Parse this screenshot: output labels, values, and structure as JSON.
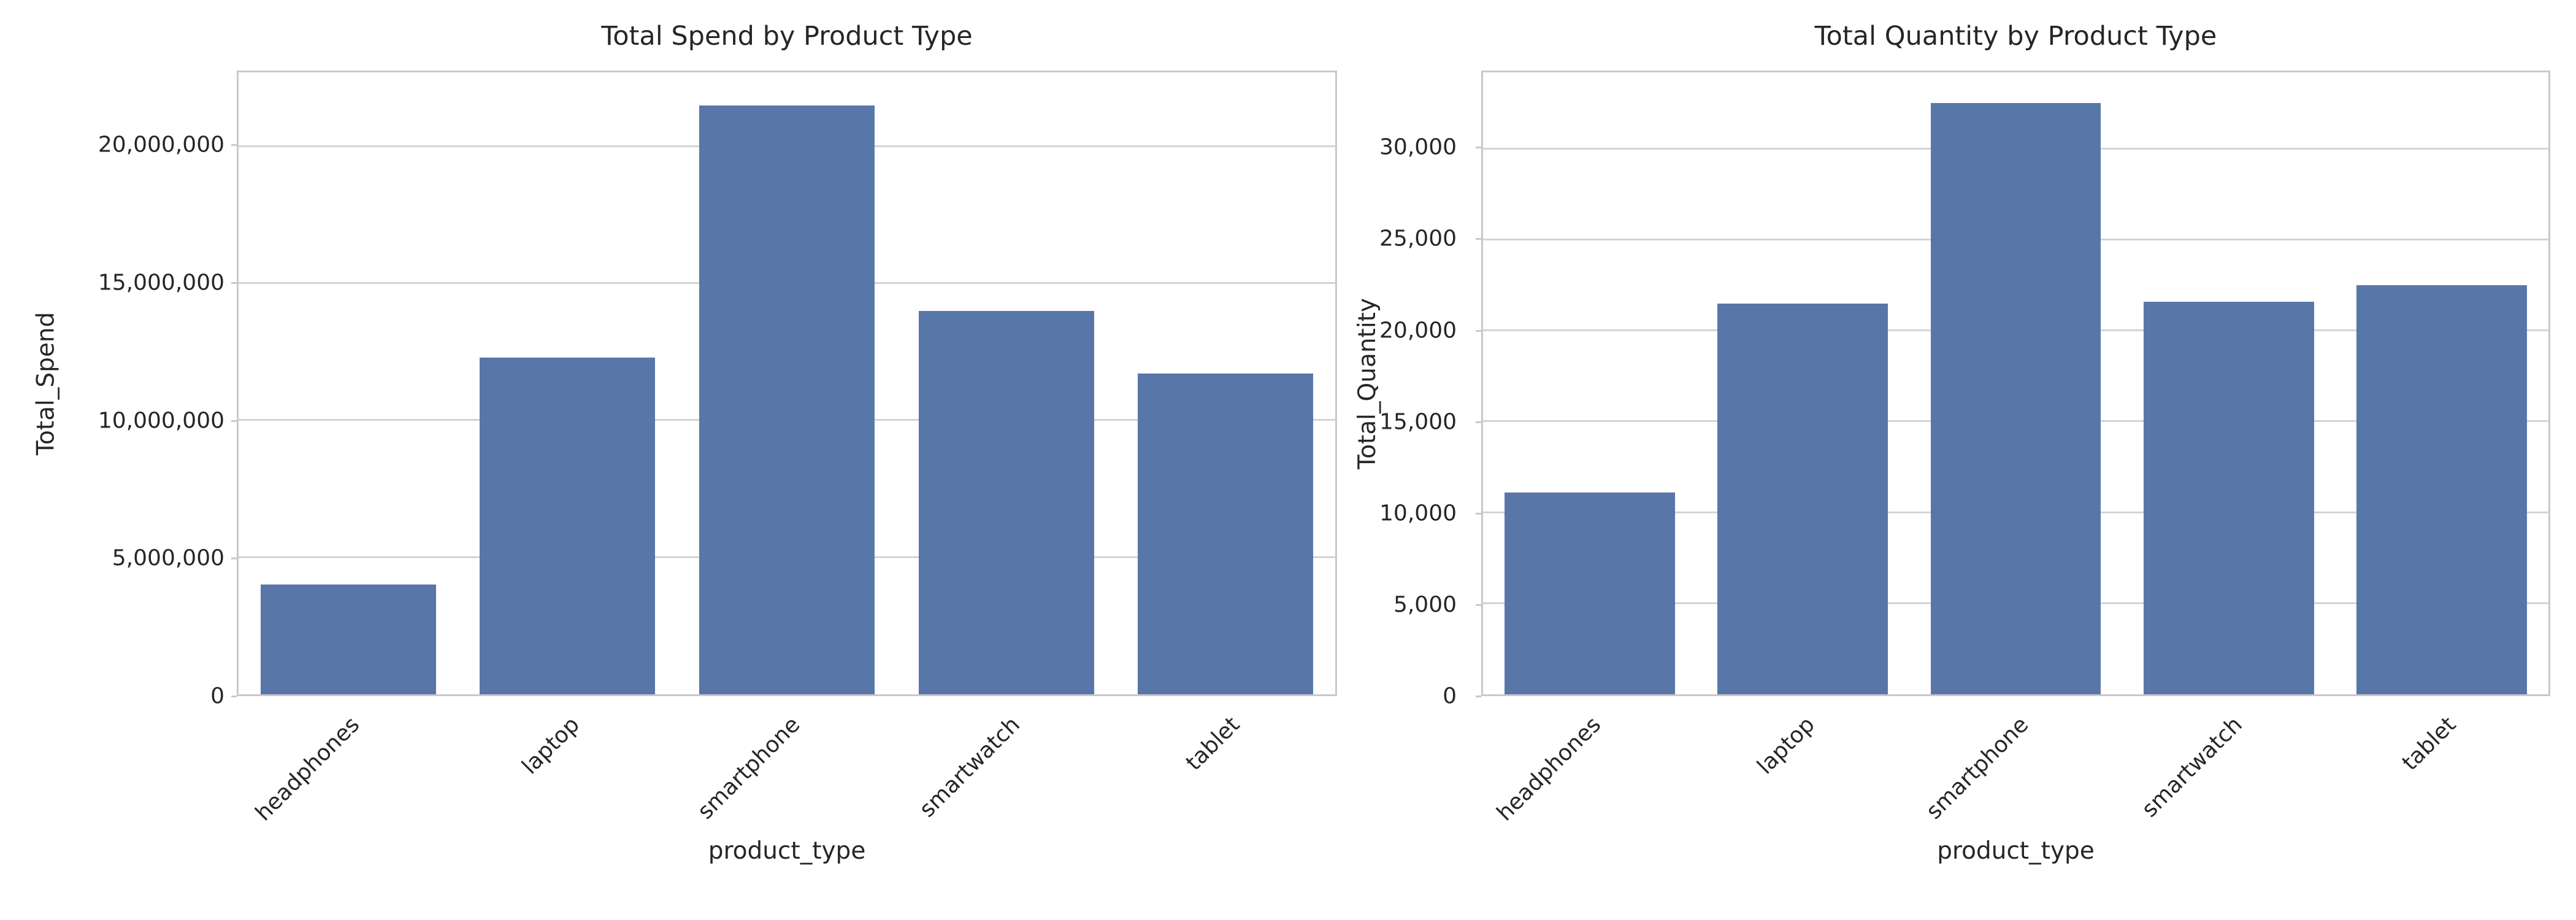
{
  "page": {
    "background_color": "#ffffff",
    "text_color": "#262626",
    "grid_color": "#d4d4d4",
    "spine_color": "#c9c9c9"
  },
  "chart_data": [
    {
      "type": "bar",
      "title": "Total Spend by Product Type",
      "xlabel": "product_type",
      "ylabel": "Total_Spend",
      "categories": [
        "headphones",
        "laptop",
        "smartphone",
        "smartwatch",
        "tablet"
      ],
      "values": [
        4000000,
        12300000,
        21500000,
        14000000,
        11700000
      ],
      "bar_color": "#5876a8",
      "bar_width_fraction": 0.8,
      "ylim": [
        0,
        22700000
      ],
      "grid": true,
      "legend": null,
      "yticks": [
        {
          "value": 0,
          "label": "0"
        },
        {
          "value": 5000000,
          "label": "5,000,000"
        },
        {
          "value": 10000000,
          "label": "10,000,000"
        },
        {
          "value": 15000000,
          "label": "15,000,000"
        },
        {
          "value": 20000000,
          "label": "20,000,000"
        }
      ]
    },
    {
      "type": "bar",
      "title": "Total Quantity by Product Type",
      "xlabel": "product_type",
      "ylabel": "Total_Quantity",
      "categories": [
        "headphones",
        "laptop",
        "smartphone",
        "smartwatch",
        "tablet"
      ],
      "values": [
        11100,
        21500,
        32500,
        21600,
        22500
      ],
      "bar_color": "#5876a8",
      "bar_width_fraction": 0.8,
      "ylim": [
        0,
        34200
      ],
      "grid": true,
      "legend": null,
      "yticks": [
        {
          "value": 0,
          "label": "0"
        },
        {
          "value": 5000,
          "label": "5,000"
        },
        {
          "value": 10000,
          "label": "10,000"
        },
        {
          "value": 15000,
          "label": "15,000"
        },
        {
          "value": 20000,
          "label": "20,000"
        },
        {
          "value": 25000,
          "label": "25,000"
        },
        {
          "value": 30000,
          "label": "30,000"
        }
      ]
    }
  ]
}
